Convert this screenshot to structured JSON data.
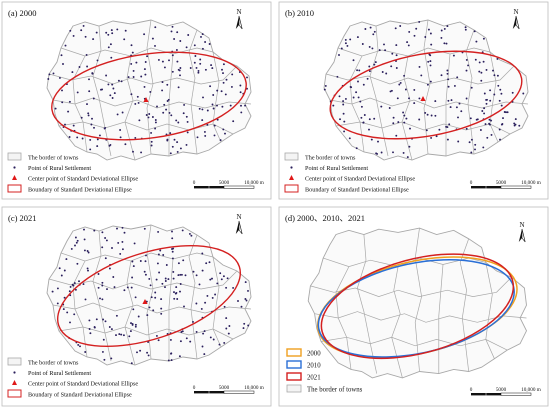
{
  "panels": [
    {
      "label": "(a) 2000",
      "north": "N",
      "scale": {
        "ticks": [
          "0",
          "5000",
          "10,000 m"
        ]
      },
      "legend": [
        {
          "key": "border",
          "text": "The border of towns"
        },
        {
          "key": "point",
          "text": "Point of Rural Settlement"
        },
        {
          "key": "center",
          "text": "Center point of Standard Deviational Ellipse"
        },
        {
          "key": "ellipse",
          "text": "Boundary of Standard Deviational Ellipse"
        }
      ]
    },
    {
      "label": "(b) 2010",
      "north": "N",
      "scale": {
        "ticks": [
          "0",
          "5000",
          "10,000 m"
        ]
      },
      "legend": [
        {
          "key": "border",
          "text": "The border of towns"
        },
        {
          "key": "point",
          "text": "Point of Rural Settlement"
        },
        {
          "key": "center",
          "text": "Center point of Standard Deviational Ellipse"
        },
        {
          "key": "ellipse",
          "text": "Boundary of Standard Deviational Ellipse"
        }
      ]
    },
    {
      "label": "(c) 2021",
      "north": "N",
      "scale": {
        "ticks": [
          "0",
          "5000",
          "10,000 m"
        ]
      },
      "legend": [
        {
          "key": "border",
          "text": "The border of towns"
        },
        {
          "key": "point",
          "text": "Point of Rural Settlement"
        },
        {
          "key": "center",
          "text": "Center point of Standard Deviational Ellipse"
        },
        {
          "key": "ellipse",
          "text": "Boundary of Standard Deviational Ellipse"
        }
      ]
    },
    {
      "label": "(d) 2000、2010、2021",
      "north": "N",
      "scale": {
        "ticks": [
          "0",
          "5000",
          "10,000 m"
        ]
      },
      "legend": [
        {
          "key": "2000",
          "text": "2000"
        },
        {
          "key": "2010",
          "text": "2010"
        },
        {
          "key": "2021",
          "text": "2021"
        },
        {
          "key": "border",
          "text": "The border of towns"
        }
      ]
    }
  ],
  "colors": {
    "border": "#a8a8a8",
    "frame": "#bdbdbd",
    "point": "#2a1f5c",
    "ellipse": "#d42020",
    "center": "#e01818",
    "e2000": "#f0a020",
    "e2010": "#2a6fd6",
    "e2021": "#d42020"
  },
  "icons": [
    "north-arrow-icon",
    "scale-bar-icon"
  ]
}
